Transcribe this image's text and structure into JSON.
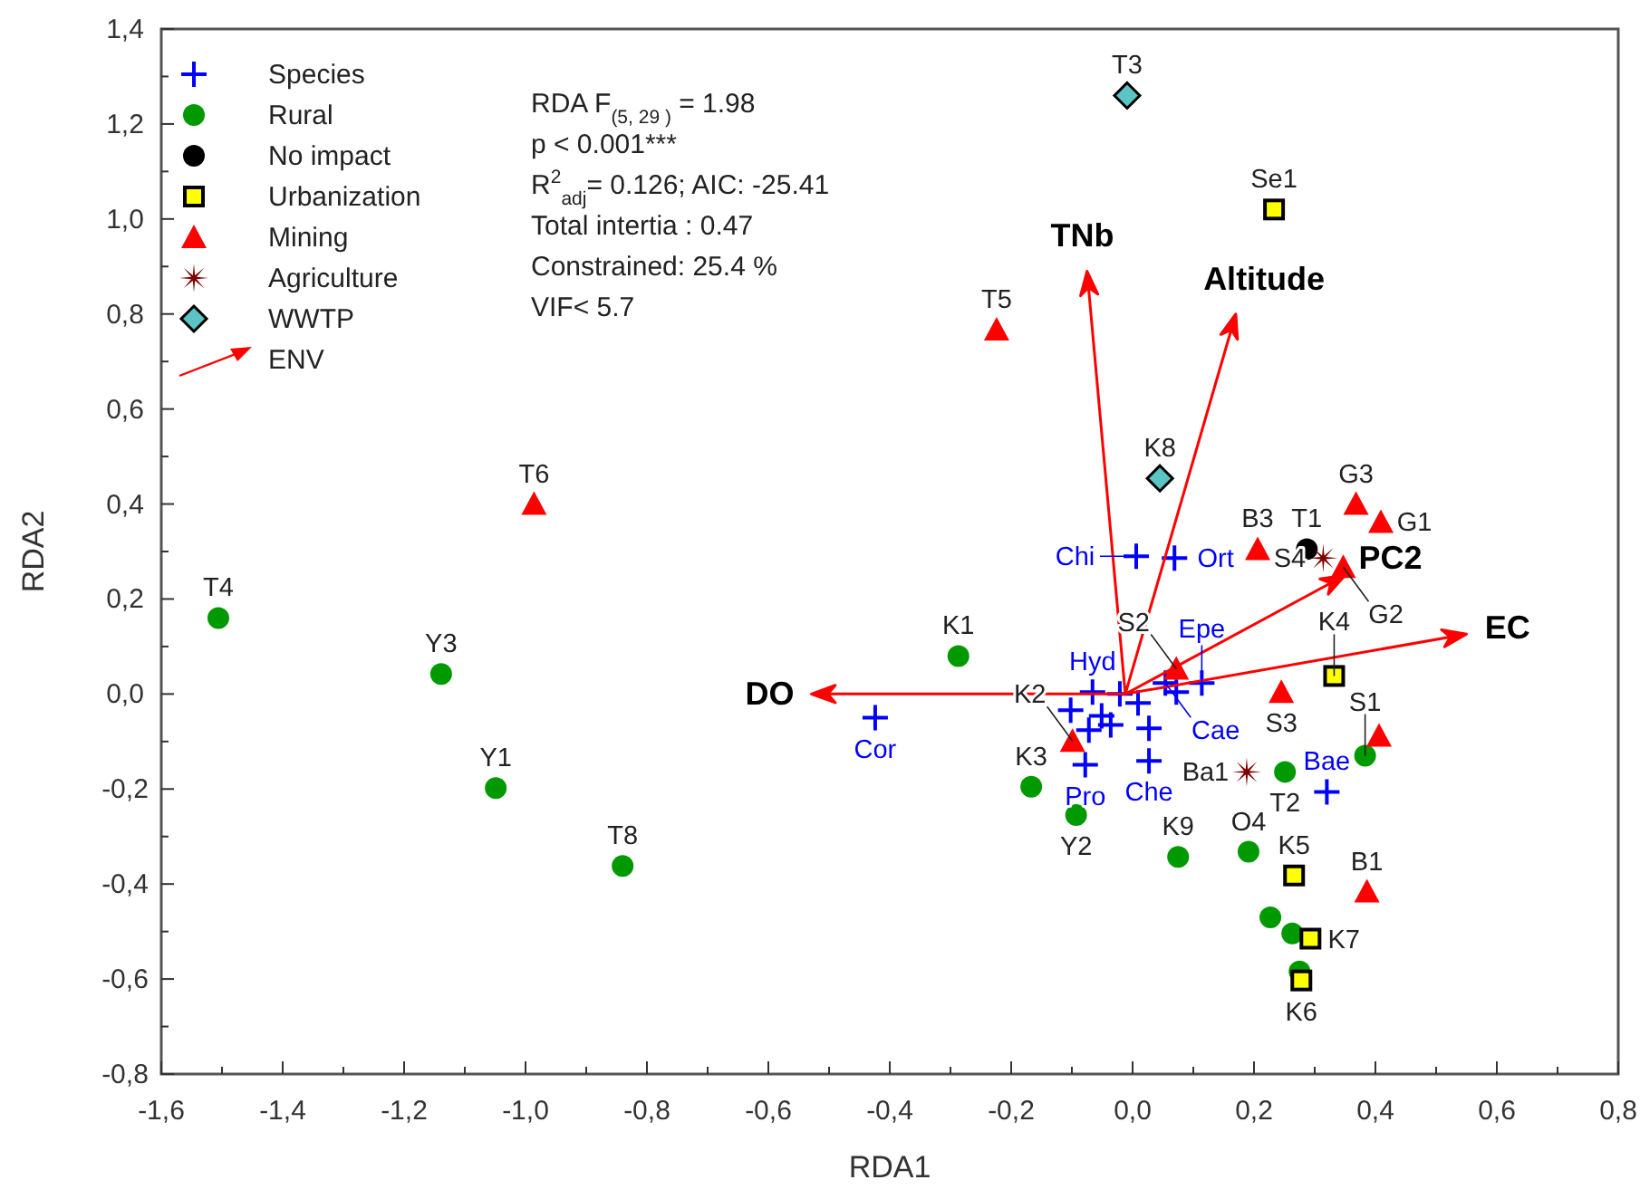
{
  "chart_data": {
    "type": "scatter",
    "xlabel": "RDA1",
    "ylabel": "RDA2",
    "legend": "top left",
    "grid": false,
    "xlim": [
      -1.6,
      0.8
    ],
    "ylim": [
      -0.8,
      1.4
    ],
    "xticks": [
      {
        "value": -1.6,
        "label": "-1,6"
      },
      {
        "value": -1.5,
        "label": null
      },
      {
        "value": -1.4,
        "label": "-1,4"
      },
      {
        "value": -1.3,
        "label": null
      },
      {
        "value": -1.2,
        "label": "-1,2"
      },
      {
        "value": -1.1,
        "label": null
      },
      {
        "value": -1.0,
        "label": "-1,0"
      },
      {
        "value": -0.9,
        "label": null
      },
      {
        "value": -0.8,
        "label": "-0,8"
      },
      {
        "value": -0.7,
        "label": null
      },
      {
        "value": -0.6,
        "label": "-0,6"
      },
      {
        "value": -0.5,
        "label": null
      },
      {
        "value": -0.4,
        "label": "-0,4"
      },
      {
        "value": -0.3,
        "label": null
      },
      {
        "value": -0.2,
        "label": "-0,2"
      },
      {
        "value": -0.1,
        "label": null
      },
      {
        "value": 0,
        "label": "0,0"
      },
      {
        "value": 0.1,
        "label": null
      },
      {
        "value": 0.2,
        "label": "0,2"
      },
      {
        "value": 0.3,
        "label": null
      },
      {
        "value": 0.4,
        "label": "0,4"
      },
      {
        "value": 0.5,
        "label": null
      },
      {
        "value": 0.6,
        "label": "0,6"
      },
      {
        "value": 0.7,
        "label": null
      },
      {
        "value": 0.8,
        "label": "0,8"
      }
    ],
    "yticks": [
      {
        "value": -0.8,
        "label": "-0,8"
      },
      {
        "value": -0.7,
        "label": null
      },
      {
        "value": -0.6,
        "label": "-0,6"
      },
      {
        "value": -0.5,
        "label": null
      },
      {
        "value": -0.4,
        "label": "-0,4"
      },
      {
        "value": -0.3,
        "label": null
      },
      {
        "value": -0.2,
        "label": "-0,2"
      },
      {
        "value": -0.1,
        "label": null
      },
      {
        "value": 0,
        "label": "0,0"
      },
      {
        "value": 0.1,
        "label": null
      },
      {
        "value": 0.2,
        "label": "0,2"
      },
      {
        "value": 0.3,
        "label": null
      },
      {
        "value": 0.4,
        "label": "0,4"
      },
      {
        "value": 0.5,
        "label": null
      },
      {
        "value": 0.6,
        "label": "0,6"
      },
      {
        "value": 0.7,
        "label": null
      },
      {
        "value": 0.8,
        "label": "0,8"
      },
      {
        "value": 0.9,
        "label": null
      },
      {
        "value": 1.0,
        "label": "1,0"
      },
      {
        "value": 1.1,
        "label": null
      },
      {
        "value": 1.2,
        "label": "1,2"
      },
      {
        "value": 1.3,
        "label": null
      },
      {
        "value": 1.4,
        "label": "1,4"
      }
    ],
    "series": [
      {
        "name": "Species",
        "color": "#0000ff",
        "marker": "cross",
        "x": [
          0.006,
          0.069,
          -0.424,
          0.027,
          -0.078,
          0.32,
          -0.102,
          -0.066,
          -0.072,
          0.027,
          0.114,
          -0.021,
          0.054,
          0.009,
          -0.051,
          0.072,
          -0.036
        ],
        "values": [
          0.29,
          0.286,
          -0.05,
          -0.141,
          -0.149,
          -0.206,
          -0.034,
          0.004,
          -0.076,
          -0.072,
          0.023,
          0.0,
          0.023,
          -0.019,
          -0.046,
          0.004,
          -0.065
        ]
      },
      {
        "name": "Rural",
        "color": "#009900",
        "marker": "circle",
        "x": [
          -1.506,
          -1.139,
          -1.049,
          -0.84,
          -0.287,
          -0.167,
          -0.093,
          0.075,
          0.251,
          0.191,
          0.383,
          0.227,
          0.263,
          0.275
        ],
        "values": [
          0.16,
          0.042,
          -0.198,
          -0.362,
          0.08,
          -0.195,
          -0.255,
          -0.343,
          -0.164,
          -0.332,
          -0.13,
          -0.47,
          -0.504,
          -0.584
        ]
      },
      {
        "name": "No impact",
        "color": "#000000",
        "marker": "circle",
        "x": [
          0.287
        ],
        "values": [
          0.305
        ]
      },
      {
        "name": "Urbanization",
        "color": "#ffff00",
        "marker": "square",
        "x": [
          0.233,
          0.332,
          0.266,
          0.293,
          0.278
        ],
        "values": [
          1.02,
          0.038,
          -0.382,
          -0.515,
          -0.603
        ]
      },
      {
        "name": "Mining",
        "color": "#ff0000",
        "marker": "triangle",
        "x": [
          -0.224,
          -0.986,
          0.368,
          0.409,
          0.347,
          0.206,
          0.072,
          0.245,
          -0.099,
          0.406,
          0.386
        ],
        "values": [
          0.767,
          0.4,
          0.4,
          0.362,
          0.267,
          0.305,
          0.053,
          0.004,
          -0.099,
          -0.088,
          -0.416
        ]
      },
      {
        "name": "Agriculture",
        "color": "#800000",
        "marker": "star",
        "x": [
          0.314,
          0.188
        ],
        "values": [
          0.286,
          -0.164
        ]
      },
      {
        "name": "WWTP",
        "color": "#5cc4c4",
        "marker": "diamond",
        "x": [
          -0.009,
          0.045
        ],
        "values": [
          1.26,
          0.454
        ]
      },
      {
        "name": "ENV",
        "type": "line",
        "color": "#ff0000",
        "marker": "none",
        "x": [
          -0.012,
          -0.075,
          null,
          -0.012,
          0.17,
          null,
          -0.012,
          0.35,
          null,
          -0.012,
          0.55,
          null,
          -0.012,
          -0.529
        ],
        "values": [
          0,
          0.89,
          null,
          0,
          0.8,
          null,
          0,
          0.25,
          null,
          0,
          0.126,
          null,
          0,
          0
        ]
      }
    ],
    "annotations": [
      "RDA F$_{(5, 29 )}$ = 1.98",
      "p <  0.001***",
      "R$^{2}$$_{adj}$= 0.126; AIC: -25.41",
      "Total intertia : 0.47",
      "Constrained: 25.4 %",
      "VIF< 5.7",
      {
        "text": "TNb",
        "x": -0.075,
        "y": 0.89
      },
      {
        "text": "Altitude",
        "x": 0.17,
        "y": 0.8
      },
      {
        "text": "PC2",
        "x": 0.35,
        "y": 0.25
      },
      {
        "text": "EC",
        "x": 0.55,
        "y": 0.126
      },
      {
        "text": "DO",
        "x": -0.529,
        "y": 0
      },
      {
        "text": "Chi",
        "x": 0.006,
        "y": 0.29
      },
      {
        "text": "Ort",
        "x": 0.069,
        "y": 0.286
      },
      {
        "text": "Cor",
        "x": -0.424,
        "y": -0.05
      },
      {
        "text": "Che",
        "x": 0.027,
        "y": -0.141
      },
      {
        "text": "Pro",
        "x": -0.078,
        "y": -0.149
      },
      {
        "text": "Bae",
        "x": 0.32,
        "y": -0.206
      },
      {
        "text": "Cae",
        "x": 0.054,
        "y": 0.023
      },
      {
        "text": "Hyd",
        "x": -0.066,
        "y": 0.004
      },
      {
        "text": "Epe",
        "x": 0.114,
        "y": 0.023
      },
      {
        "text": "T4",
        "x": -1.506,
        "y": 0.16
      },
      {
        "text": "Y3",
        "x": -1.139,
        "y": 0.042
      },
      {
        "text": "Y1",
        "x": -1.049,
        "y": -0.198
      },
      {
        "text": "T8",
        "x": -0.84,
        "y": -0.362
      },
      {
        "text": "K1",
        "x": -0.287,
        "y": 0.08
      },
      {
        "text": "K3",
        "x": -0.167,
        "y": -0.195
      },
      {
        "text": "Y2",
        "x": -0.093,
        "y": -0.255
      },
      {
        "text": "K9",
        "x": 0.075,
        "y": -0.343
      },
      {
        "text": "T2",
        "x": 0.251,
        "y": -0.164
      },
      {
        "text": "O4",
        "x": 0.191,
        "y": -0.332
      },
      {
        "text": "S1",
        "x": 0.383,
        "y": -0.13
      },
      {
        "text": "T1",
        "x": 0.287,
        "y": 0.305
      },
      {
        "text": "Se1",
        "x": 0.233,
        "y": 1.02
      },
      {
        "text": "K4",
        "x": 0.332,
        "y": 0.038
      },
      {
        "text": "K5",
        "x": 0.266,
        "y": -0.382
      },
      {
        "text": "K7",
        "x": 0.293,
        "y": -0.515
      },
      {
        "text": "K6",
        "x": 0.278,
        "y": -0.603
      },
      {
        "text": "T5",
        "x": -0.224,
        "y": 0.767
      },
      {
        "text": "T6",
        "x": -0.986,
        "y": 0.4
      },
      {
        "text": "G3",
        "x": 0.368,
        "y": 0.4
      },
      {
        "text": "G1",
        "x": 0.409,
        "y": 0.362
      },
      {
        "text": "G2",
        "x": 0.347,
        "y": 0.267
      },
      {
        "text": "B3",
        "x": 0.206,
        "y": 0.305
      },
      {
        "text": "S2",
        "x": 0.072,
        "y": 0.053
      },
      {
        "text": "S3",
        "x": 0.245,
        "y": 0.004
      },
      {
        "text": "K2",
        "x": -0.099,
        "y": -0.099
      },
      {
        "text": "B1",
        "x": 0.386,
        "y": -0.416
      },
      {
        "text": "S4",
        "x": 0.314,
        "y": 0.286
      },
      {
        "text": "Ba1",
        "x": 0.188,
        "y": -0.164
      },
      {
        "text": "T3",
        "x": -0.009,
        "y": 1.26
      },
      {
        "text": "K8",
        "x": 0.045,
        "y": 0.454
      }
    ]
  }
}
